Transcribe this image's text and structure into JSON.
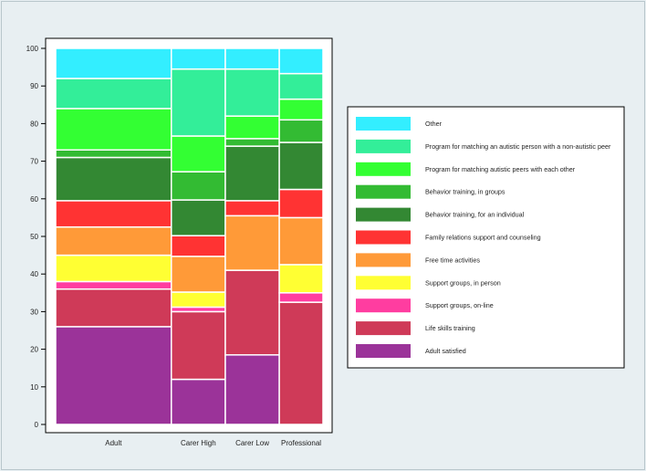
{
  "chart_data": {
    "type": "bar",
    "stacked": true,
    "variable_width": true,
    "title": "",
    "xlabel": "",
    "ylabel": "",
    "ylim": [
      0,
      100
    ],
    "yticks": [
      0,
      10,
      20,
      30,
      40,
      50,
      60,
      70,
      80,
      90,
      100
    ],
    "categories": [
      "Adult",
      "Carer High",
      "Carer Low",
      "Professional"
    ],
    "category_widths": [
      0.45,
      0.21,
      0.21,
      0.17
    ],
    "legend_position": "right",
    "series": [
      {
        "name": "Adult satisfied",
        "color": "#9b3399",
        "values": [
          26,
          12,
          18.5,
          0
        ]
      },
      {
        "name": "Life skills training",
        "color": "#cf3a58",
        "values": [
          10,
          18,
          22.5,
          32.5
        ]
      },
      {
        "name": "Support groups, on-line",
        "color": "#ff3da0",
        "values": [
          2,
          1.2,
          0,
          2.5
        ]
      },
      {
        "name": "Support groups, in person",
        "color": "#ffff33",
        "values": [
          7,
          4,
          0,
          7.5
        ]
      },
      {
        "name": "Free time activities",
        "color": "#ff9a38",
        "values": [
          7.5,
          9.5,
          14.5,
          12.5
        ]
      },
      {
        "name": "Family relations support and counseling",
        "color": "#ff3333",
        "values": [
          7,
          5.5,
          4,
          7.5
        ]
      },
      {
        "name": "Behavior training, for an individual",
        "color": "#338833",
        "values": [
          11.5,
          9.5,
          14.5,
          12.5
        ]
      },
      {
        "name": "Behavior training, in groups",
        "color": "#33bb33",
        "values": [
          2,
          7.5,
          2,
          6
        ]
      },
      {
        "name": "Program for matching autistic peers with each other",
        "color": "#33ff33",
        "values": [
          11,
          9.5,
          6,
          5.5
        ]
      },
      {
        "name": "Program for matching an autistic person with a non-autistic peer",
        "color": "#33ee99",
        "values": [
          8,
          17.8,
          12.5,
          6.8
        ]
      },
      {
        "name": "Other",
        "color": "#33eeff",
        "values": [
          8,
          5.5,
          5.5,
          6.7
        ]
      }
    ]
  }
}
